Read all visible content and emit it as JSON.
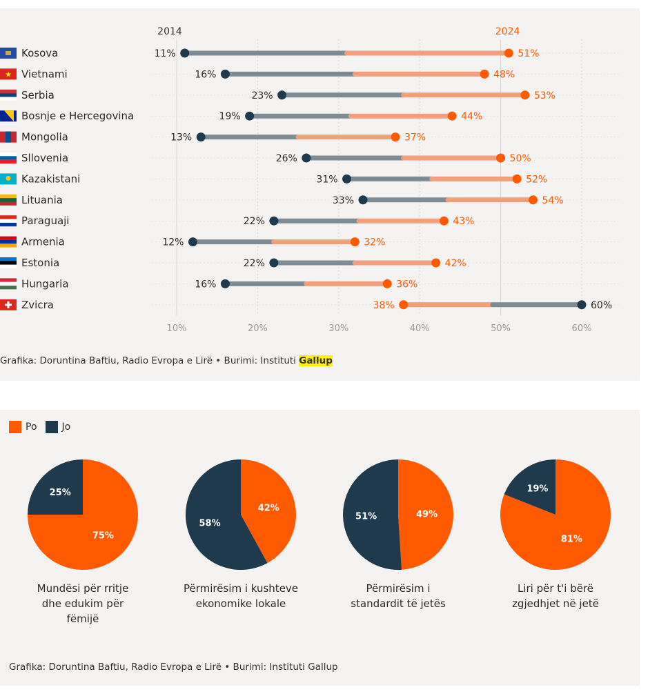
{
  "colors": {
    "po": "#ff5a00",
    "jo": "#1e3a4c",
    "line_orange": "#f2a07b",
    "line_gray": "#7f8b93",
    "grid": "#d7d7d7",
    "tick": "#9a9a9a"
  },
  "chart_data": [
    {
      "type": "dumbbell",
      "start_label": "2014",
      "end_label": "2024",
      "x_ticks": [
        "10%",
        "20%",
        "30%",
        "40%",
        "50%",
        "60%"
      ],
      "xlim": [
        10,
        60
      ],
      "rows": [
        {
          "country": "Kosova",
          "flag": "kosovo-flag",
          "v2014": 11,
          "v2024": 51,
          "l2014": "11%",
          "l2024": "51%"
        },
        {
          "country": "Vietnami",
          "flag": "vietnam-flag",
          "v2014": 16,
          "v2024": 48,
          "l2014": "16%",
          "l2024": "48%"
        },
        {
          "country": "Serbia",
          "flag": "serbia-flag",
          "v2014": 23,
          "v2024": 53,
          "l2014": "23%",
          "l2024": "53%"
        },
        {
          "country": "Bosnje e Hercegovina",
          "flag": "bosnia-flag",
          "v2014": 19,
          "v2024": 44,
          "l2014": "19%",
          "l2024": "44%"
        },
        {
          "country": "Mongolia",
          "flag": "mongolia-flag",
          "v2014": 13,
          "v2024": 37,
          "l2014": "13%",
          "l2024": "37%"
        },
        {
          "country": "Sllovenia",
          "flag": "slovenia-flag",
          "v2014": 26,
          "v2024": 50,
          "l2014": "26%",
          "l2024": "50%"
        },
        {
          "country": "Kazakistani",
          "flag": "kazakhstan-flag",
          "v2014": 31,
          "v2024": 52,
          "l2014": "31%",
          "l2024": "52%"
        },
        {
          "country": "Lituania",
          "flag": "lithuania-flag",
          "v2014": 33,
          "v2024": 54,
          "l2014": "33%",
          "l2024": "54%"
        },
        {
          "country": "Paraguaji",
          "flag": "paraguay-flag",
          "v2014": 22,
          "v2024": 43,
          "l2014": "22%",
          "l2024": "43%"
        },
        {
          "country": "Armenia",
          "flag": "armenia-flag",
          "v2014": 12,
          "v2024": 32,
          "l2014": "12%",
          "l2024": "32%"
        },
        {
          "country": "Estonia",
          "flag": "estonia-flag",
          "v2014": 22,
          "v2024": 42,
          "l2014": "22%",
          "l2024": "42%"
        },
        {
          "country": "Hungaria",
          "flag": "hungary-flag",
          "v2014": 16,
          "v2024": 36,
          "l2014": "16%",
          "l2024": "36%"
        },
        {
          "country": "Zvicra",
          "flag": "switzerland-flag",
          "v2014": 60,
          "v2024": 38,
          "l2014": "60%",
          "l2024": "38%"
        }
      ]
    },
    {
      "type": "pie",
      "legend": [
        {
          "name": "Po",
          "color": "#ff5a00"
        },
        {
          "name": "Jo",
          "color": "#1e3a4c"
        }
      ],
      "pies": [
        {
          "caption": [
            "Mundësi për rritje",
            "dhe edukim për",
            "fëmijë"
          ],
          "po": 75,
          "jo": 25,
          "po_label": "75%",
          "jo_label": "25%"
        },
        {
          "caption": [
            "Përmirësim i kushteve",
            "ekonomike lokale"
          ],
          "po": 42,
          "jo": 58,
          "po_label": "42%",
          "jo_label": "58%"
        },
        {
          "caption": [
            "Përmirësim i",
            "standardit të jetës"
          ],
          "po": 49,
          "jo": 51,
          "po_label": "49%",
          "jo_label": "51%"
        },
        {
          "caption": [
            "Liri për t'i bërë",
            "zgjedhjet në jetë"
          ],
          "po": 81,
          "jo": 19,
          "po_label": "81%",
          "jo_label": "19%"
        }
      ]
    }
  ],
  "source1": {
    "prefix": "Grafika: Doruntina Baftiu, Radio Evropa e Lirë • Burimi: Instituti ",
    "highlight": "Gallup"
  },
  "legend": {
    "po": "Po",
    "jo": "Jo"
  },
  "source2": "Grafika: Doruntina Baftiu, Radio Evropa e Lirë • Burimi: Instituti Gallup"
}
